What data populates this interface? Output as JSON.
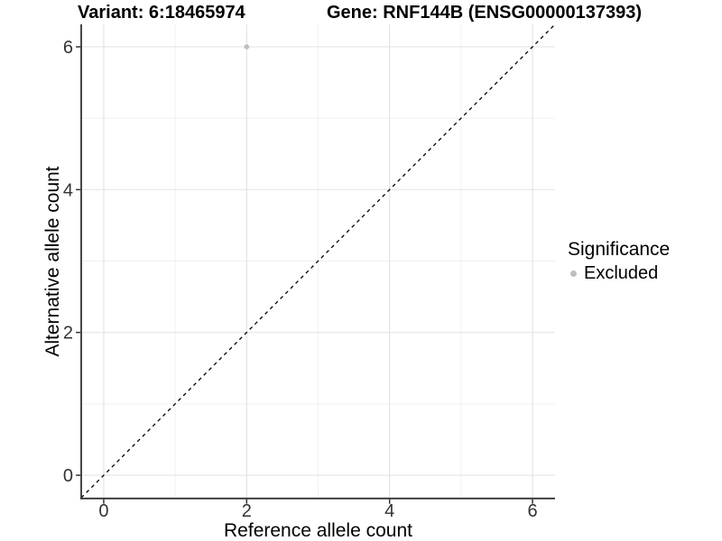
{
  "chart_data": {
    "type": "scatter",
    "title_left": "Variant: 6:18465974",
    "title_right": "Gene: RNF144B (ENSG00000137393)",
    "xlabel": "Reference allele count",
    "ylabel": "Alternative allele count",
    "xlim": [
      -0.315,
      6.315
    ],
    "ylim": [
      -0.315,
      6.315
    ],
    "xticks": [
      0,
      2,
      4,
      6
    ],
    "yticks": [
      0,
      2,
      4,
      6
    ],
    "minor_xticks": [
      1,
      3,
      5
    ],
    "minor_yticks": [
      1,
      3,
      5
    ],
    "grid": "major and minor gridlines on",
    "legend_position": "right",
    "legend": {
      "title": "Significance",
      "items": [
        {
          "label": "Excluded",
          "marker": "circle",
          "color": "#bebebe"
        }
      ]
    },
    "series": [
      {
        "name": "Excluded",
        "color": "#bebebe",
        "points": [
          {
            "x": 2,
            "y": 6
          }
        ]
      }
    ],
    "reference_line": {
      "kind": "identity y=x across full panel",
      "style": "dashed",
      "color": "#000000"
    }
  },
  "style": {
    "background": "#ffffff",
    "grid_major_color": "#e4e4e4",
    "grid_minor_color": "#f0f0f0",
    "axis_line_color": "#333333",
    "tick_mark_color": "#333333",
    "tick_label_color": "#333333",
    "title_color": "#000000",
    "point_color": "#bebebe"
  }
}
